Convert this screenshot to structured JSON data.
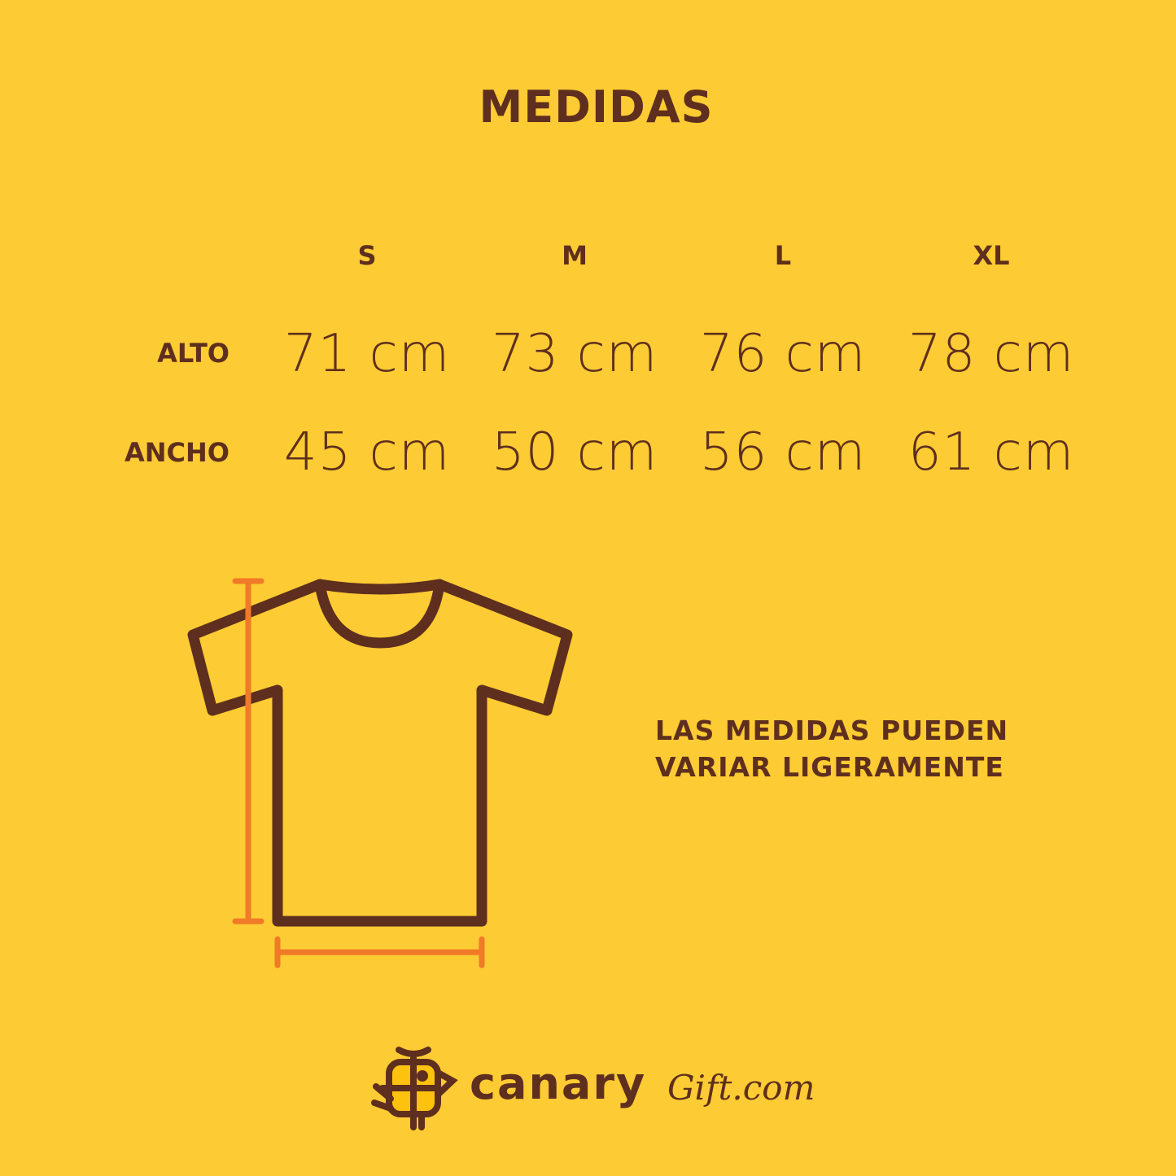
{
  "title": "MEDIDAS",
  "sizes": [
    "S",
    "M",
    "L",
    "XL"
  ],
  "rows": [
    {
      "label": "ALTO",
      "values": [
        "71 cm",
        "73 cm",
        "76 cm",
        "78 cm"
      ]
    },
    {
      "label": "ANCHO",
      "values": [
        "45 cm",
        "50 cm",
        "56 cm",
        "61 cm"
      ]
    }
  ],
  "note": [
    "LAS MEDIDAS PUEDEN",
    "VARIAR LIGERAMENTE"
  ],
  "brand": {
    "name": "canary",
    "suffix": "Gift.com"
  },
  "colors": {
    "background": "#FDCB33",
    "text": "#5E2F1E",
    "measure": "#F07A28"
  }
}
